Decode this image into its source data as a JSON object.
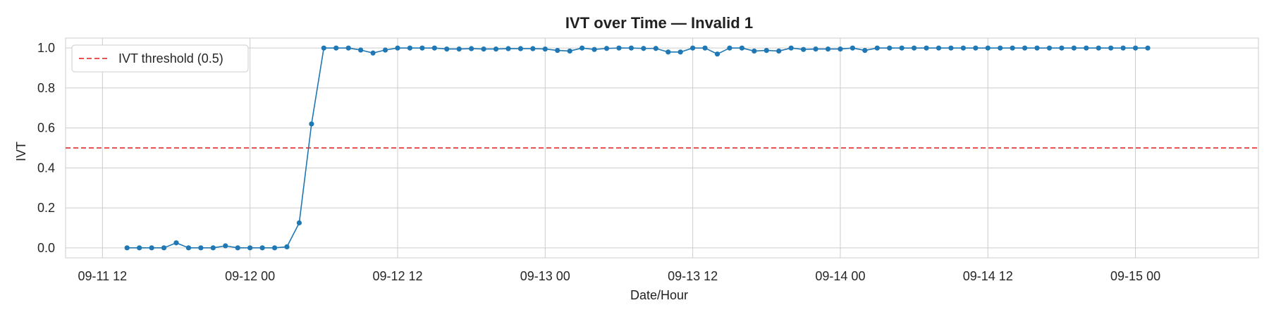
{
  "chart_data": {
    "type": "line",
    "title": "IVT over Time — Invalid 1",
    "xlabel": "Date/Hour",
    "ylabel": "IVT",
    "x_axis": {
      "type": "datetime",
      "range": [
        "2025-09-11T09:00",
        "2025-09-15T10:00"
      ],
      "ticks": [
        {
          "value": "2025-09-11T12:00",
          "label": "09-11 12"
        },
        {
          "value": "2025-09-12T00:00",
          "label": "09-12 00"
        },
        {
          "value": "2025-09-12T12:00",
          "label": "09-12 12"
        },
        {
          "value": "2025-09-13T00:00",
          "label": "09-13 00"
        },
        {
          "value": "2025-09-13T12:00",
          "label": "09-13 12"
        },
        {
          "value": "2025-09-14T00:00",
          "label": "09-14 00"
        },
        {
          "value": "2025-09-14T12:00",
          "label": "09-14 12"
        },
        {
          "value": "2025-09-15T00:00",
          "label": "09-15 00"
        }
      ]
    },
    "y_axis": {
      "ylim": [
        -0.05,
        1.05
      ],
      "ticks": [
        {
          "value": 0.0,
          "label": "0.0"
        },
        {
          "value": 0.2,
          "label": "0.2"
        },
        {
          "value": 0.4,
          "label": "0.4"
        },
        {
          "value": 0.6,
          "label": "0.6"
        },
        {
          "value": 0.8,
          "label": "0.8"
        },
        {
          "value": 1.0,
          "label": "1.0"
        }
      ]
    },
    "grid": true,
    "legend_position": "top-left",
    "threshold": {
      "value": 0.5,
      "label": "IVT threshold (0.5)",
      "color": "#e31a1c",
      "style": "dashed"
    },
    "series": [
      {
        "color": "#1f77b4",
        "marker": "circle",
        "x": [
          "2025-09-11T14:00",
          "2025-09-11T15:00",
          "2025-09-11T16:00",
          "2025-09-11T17:00",
          "2025-09-11T18:00",
          "2025-09-11T19:00",
          "2025-09-11T20:00",
          "2025-09-11T21:00",
          "2025-09-11T22:00",
          "2025-09-11T23:00",
          "2025-09-12T00:00",
          "2025-09-12T01:00",
          "2025-09-12T02:00",
          "2025-09-12T03:00",
          "2025-09-12T04:00",
          "2025-09-12T05:00",
          "2025-09-12T06:00",
          "2025-09-12T07:00",
          "2025-09-12T08:00",
          "2025-09-12T09:00",
          "2025-09-12T10:00",
          "2025-09-12T11:00",
          "2025-09-12T12:00",
          "2025-09-12T13:00",
          "2025-09-12T14:00",
          "2025-09-12T15:00",
          "2025-09-12T16:00",
          "2025-09-12T17:00",
          "2025-09-12T18:00",
          "2025-09-12T19:00",
          "2025-09-12T20:00",
          "2025-09-12T21:00",
          "2025-09-12T22:00",
          "2025-09-12T23:00",
          "2025-09-13T00:00",
          "2025-09-13T01:00",
          "2025-09-13T02:00",
          "2025-09-13T03:00",
          "2025-09-13T04:00",
          "2025-09-13T05:00",
          "2025-09-13T06:00",
          "2025-09-13T07:00",
          "2025-09-13T08:00",
          "2025-09-13T09:00",
          "2025-09-13T10:00",
          "2025-09-13T11:00",
          "2025-09-13T12:00",
          "2025-09-13T13:00",
          "2025-09-13T14:00",
          "2025-09-13T15:00",
          "2025-09-13T16:00",
          "2025-09-13T17:00",
          "2025-09-13T18:00",
          "2025-09-13T19:00",
          "2025-09-13T20:00",
          "2025-09-13T21:00",
          "2025-09-13T22:00",
          "2025-09-13T23:00",
          "2025-09-14T00:00",
          "2025-09-14T01:00",
          "2025-09-14T02:00",
          "2025-09-14T03:00",
          "2025-09-14T04:00",
          "2025-09-14T05:00",
          "2025-09-14T06:00",
          "2025-09-14T07:00",
          "2025-09-14T08:00",
          "2025-09-14T09:00",
          "2025-09-14T10:00",
          "2025-09-14T11:00",
          "2025-09-14T12:00",
          "2025-09-14T13:00",
          "2025-09-14T14:00",
          "2025-09-14T15:00",
          "2025-09-14T16:00",
          "2025-09-14T17:00",
          "2025-09-14T18:00",
          "2025-09-14T19:00",
          "2025-09-14T20:00",
          "2025-09-14T21:00",
          "2025-09-14T22:00",
          "2025-09-14T23:00",
          "2025-09-15T00:00",
          "2025-09-15T01:00"
        ],
        "y": [
          0.0,
          0.0,
          0.0,
          0.0,
          0.025,
          0.0,
          0.0,
          0.0,
          0.01,
          0.0,
          0.0,
          0.0,
          0.0,
          0.005,
          0.125,
          0.62,
          1.0,
          1.0,
          1.0,
          0.99,
          0.975,
          0.99,
          1.0,
          1.0,
          1.0,
          1.0,
          0.995,
          0.995,
          0.997,
          0.995,
          0.995,
          0.997,
          0.997,
          0.997,
          0.995,
          0.988,
          0.985,
          1.0,
          0.993,
          0.998,
          1.0,
          1.0,
          0.998,
          0.998,
          0.98,
          0.98,
          1.0,
          1.0,
          0.97,
          1.0,
          1.0,
          0.985,
          0.988,
          0.985,
          1.0,
          0.993,
          0.995,
          0.995,
          0.995,
          1.0,
          0.988,
          1.0,
          1.0,
          1.0,
          1.0,
          1.0,
          1.0,
          1.0,
          1.0,
          1.0,
          1.0,
          1.0,
          1.0,
          1.0,
          1.0,
          1.0,
          1.0,
          1.0,
          1.0,
          1.0,
          1.0,
          1.0,
          1.0,
          1.0
        ]
      }
    ]
  }
}
